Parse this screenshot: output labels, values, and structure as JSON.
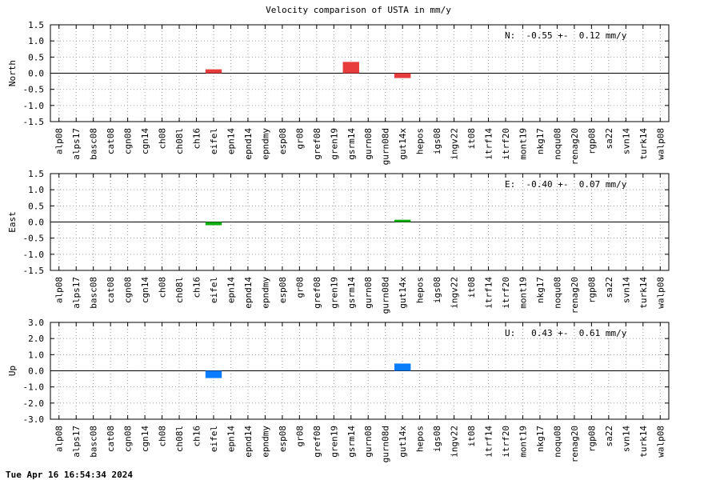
{
  "title": "Velocity comparison of USTA in mm/y",
  "timestamp": "Tue Apr 16 16:54:34 2024",
  "chart_data": [
    {
      "type": "bar",
      "ylabel": "North",
      "ylim": [
        -1.5,
        1.5
      ],
      "yticks": [
        "1.5",
        "1.0",
        "0.5",
        "0.0",
        "-0.5",
        "-1.0",
        "-1.5"
      ],
      "grid": true,
      "color": "#e63c3c",
      "annotation": "N:  -0.55 +-  0.12 mm/y",
      "categories": [
        "alp08",
        "alps17",
        "basc08",
        "cat08",
        "cgn08",
        "cgn14",
        "ch08",
        "ch08l",
        "ch16",
        "eifel",
        "epn14",
        "epnd14",
        "epndmy",
        "esp08",
        "gr08",
        "gref08",
        "gren19",
        "gsrm14",
        "gurn08",
        "gurn08d",
        "gut14x",
        "hepos",
        "igs08",
        "ingv22",
        "it08",
        "itrf14",
        "itrf20",
        "mont19",
        "nkg17",
        "noqu08",
        "renag20",
        "rgp08",
        "sa22",
        "svn14",
        "turk14",
        "walp08"
      ],
      "values": [
        0,
        0,
        0,
        0,
        0,
        0,
        0,
        0,
        0,
        0.12,
        0,
        0,
        0,
        0,
        0,
        0,
        0,
        0.35,
        0,
        0,
        -0.15,
        0,
        0,
        0,
        0,
        0,
        0,
        0,
        0,
        0,
        0,
        0,
        0,
        0,
        0,
        0
      ]
    },
    {
      "type": "bar",
      "ylabel": "East",
      "ylim": [
        -1.5,
        1.5
      ],
      "yticks": [
        "1.5",
        "1.0",
        "0.5",
        "0.0",
        "-0.5",
        "-1.0",
        "-1.5"
      ],
      "grid": true,
      "color": "#0fae0f",
      "annotation": "E:  -0.40 +-  0.07 mm/y",
      "categories": [
        "alp08",
        "alps17",
        "basc08",
        "cat08",
        "cgn08",
        "cgn14",
        "ch08",
        "ch08l",
        "ch16",
        "eifel",
        "epn14",
        "epnd14",
        "epndmy",
        "esp08",
        "gr08",
        "gref08",
        "gren19",
        "gsrm14",
        "gurn08",
        "gurn08d",
        "gut14x",
        "hepos",
        "igs08",
        "ingv22",
        "it08",
        "itrf14",
        "itrf20",
        "mont19",
        "nkg17",
        "noqu08",
        "renag20",
        "rgp08",
        "sa22",
        "svn14",
        "turk14",
        "walp08"
      ],
      "values": [
        0,
        0,
        0,
        0,
        0,
        0,
        0,
        0,
        0,
        -0.1,
        0,
        0,
        0,
        0,
        0,
        0,
        0,
        0,
        0,
        0,
        0.07,
        0,
        0,
        0,
        0,
        0,
        0,
        0,
        0,
        0,
        0,
        0,
        0,
        0,
        0,
        0
      ]
    },
    {
      "type": "bar",
      "ylabel": "Up",
      "ylim": [
        -3.0,
        3.0
      ],
      "yticks": [
        "3.0",
        "2.0",
        "1.0",
        "0.0",
        "-1.0",
        "-2.0",
        "-3.0"
      ],
      "grid": true,
      "color": "#0a7dff",
      "annotation": "U:   0.43 +-  0.61 mm/y",
      "categories": [
        "alp08",
        "alps17",
        "basc08",
        "cat08",
        "cgn08",
        "cgn14",
        "ch08",
        "ch08l",
        "ch16",
        "eifel",
        "epn14",
        "epnd14",
        "epndmy",
        "esp08",
        "gr08",
        "gref08",
        "gren19",
        "gsrm14",
        "gurn08",
        "gurn08d",
        "gut14x",
        "hepos",
        "igs08",
        "ingv22",
        "it08",
        "itrf14",
        "itrf20",
        "mont19",
        "nkg17",
        "noqu08",
        "renag20",
        "rgp08",
        "sa22",
        "svn14",
        "turk14",
        "walp08"
      ],
      "values": [
        0,
        0,
        0,
        0,
        0,
        0,
        0,
        0,
        0,
        -0.45,
        0,
        0,
        0,
        0,
        0,
        0,
        0,
        0,
        0,
        0,
        0.45,
        0,
        0,
        0,
        0,
        0,
        0,
        0,
        0,
        0,
        0,
        0,
        0,
        0,
        0,
        0
      ]
    }
  ]
}
